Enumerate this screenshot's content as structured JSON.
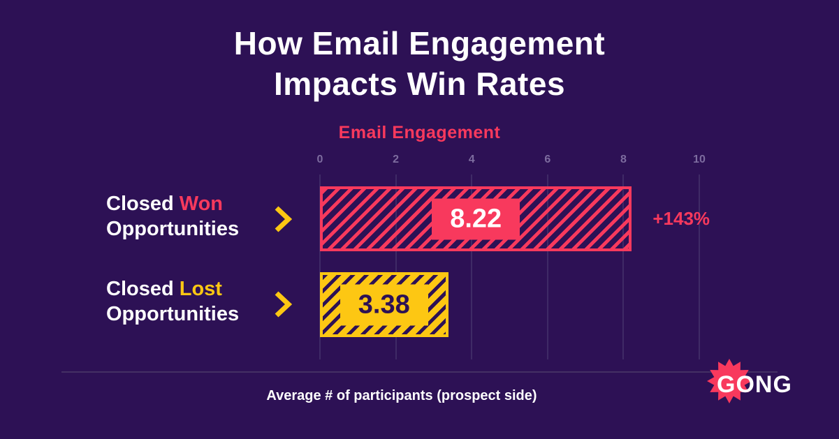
{
  "page": {
    "title_line1": "How Email Engagement",
    "title_line2": "Impacts Win Rates",
    "axis_title": "Email Engagement",
    "caption": "Average # of participants (prospect side)",
    "logo_text": "GONG"
  },
  "rows": [
    {
      "label_prefix": "Closed ",
      "label_highlight": "Won",
      "label_line2": "Opportunities",
      "value": "8.22",
      "annotation": "+143%"
    },
    {
      "label_prefix": "Closed ",
      "label_highlight": "Lost",
      "label_line2": "Opportunities",
      "value": "3.38",
      "annotation": ""
    }
  ],
  "colors": {
    "background": "#2d1155",
    "pink": "#f8395d",
    "yellow": "#fdc713",
    "text": "#ffffff",
    "tick_text": "#7d6c9f",
    "gridline": "#3f2a66"
  },
  "chart_data": {
    "type": "bar",
    "orientation": "horizontal",
    "title": "How Email Engagement Impacts Win Rates",
    "axis_title_top": "Email Engagement",
    "categories": [
      "Closed Won Opportunities",
      "Closed Lost Opportunities"
    ],
    "values": [
      8.22,
      3.38
    ],
    "value_labels": [
      "8.22",
      "3.38"
    ],
    "annotations": [
      "+143%",
      ""
    ],
    "xlim": [
      0,
      10
    ],
    "tick_labels": [
      "0",
      "2",
      "4",
      "6",
      "8",
      "10"
    ],
    "grid": true,
    "legend": false,
    "caption": "Average # of participants (prospect side)"
  }
}
